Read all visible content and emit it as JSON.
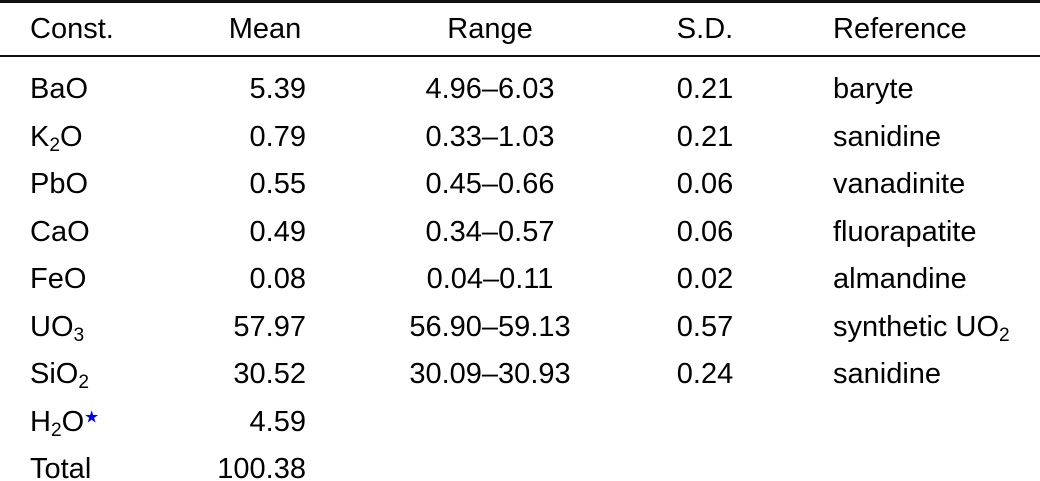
{
  "colors": {
    "text": "#000000",
    "rule": "#111111",
    "footnote_star": "#0000ee"
  },
  "table": {
    "columns": [
      {
        "name": "const",
        "label": "Const."
      },
      {
        "name": "mean",
        "label": "Mean"
      },
      {
        "name": "range",
        "label": "Range"
      },
      {
        "name": "sd",
        "label": "S.D."
      },
      {
        "name": "reference",
        "label": "Reference"
      }
    ],
    "footnote_marker": "★",
    "rows": [
      {
        "cells": [
          "BaO",
          "5.39",
          "4.96–6.03",
          "0.21",
          "baryte"
        ]
      },
      {
        "cells": [
          "K_{2}O",
          "0.79",
          "0.33–1.03",
          "0.21",
          "sanidine"
        ]
      },
      {
        "cells": [
          "PbO",
          "0.55",
          "0.45–0.66",
          "0.06",
          "vanadinite"
        ]
      },
      {
        "cells": [
          "CaO",
          "0.49",
          "0.34–0.57",
          "0.06",
          "fluorapatite"
        ]
      },
      {
        "cells": [
          "FeO",
          "0.08",
          "0.04–0.11",
          "0.02",
          "almandine"
        ]
      },
      {
        "cells": [
          "UO_{3}",
          "57.97",
          "56.90–59.13",
          "0.57",
          "synthetic UO_{2}"
        ]
      },
      {
        "cells": [
          "SiO_{2}",
          "30.52",
          "30.09–30.93",
          "0.24",
          "sanidine"
        ]
      },
      {
        "cells": [
          "H_{2}O^{*}",
          "4.59",
          "",
          "",
          ""
        ]
      },
      {
        "cells": [
          "Total",
          "100.38",
          "",
          "",
          ""
        ]
      }
    ]
  }
}
